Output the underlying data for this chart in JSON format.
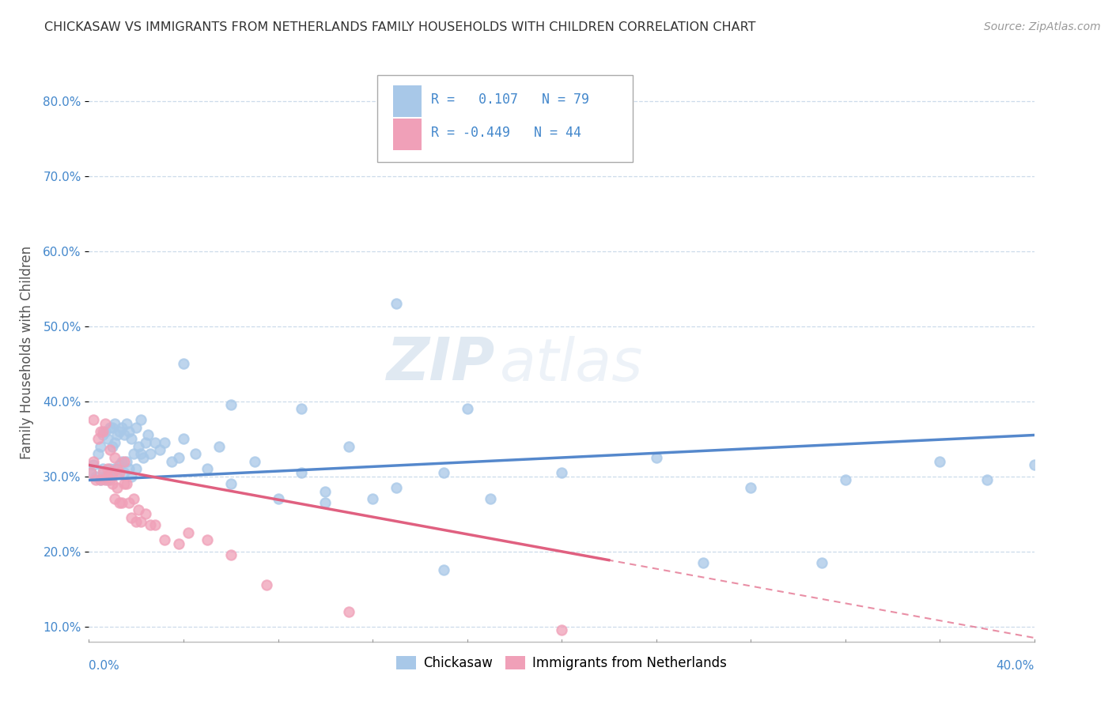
{
  "title": "CHICKASAW VS IMMIGRANTS FROM NETHERLANDS FAMILY HOUSEHOLDS WITH CHILDREN CORRELATION CHART",
  "source": "Source: ZipAtlas.com",
  "ylabel": "Family Households with Children",
  "legend_label_1": "Chickasaw",
  "legend_label_2": "Immigrants from Netherlands",
  "color_blue": "#a8c8e8",
  "color_pink": "#f0a0b8",
  "color_blue_text": "#4488cc",
  "trend_blue": "#5588cc",
  "trend_pink": "#e06080",
  "watermark_zip": "ZIP",
  "watermark_atlas": "atlas",
  "xlim": [
    0.0,
    0.4
  ],
  "ylim": [
    0.08,
    0.85
  ],
  "blue_x": [
    0.001,
    0.002,
    0.003,
    0.004,
    0.005,
    0.005,
    0.006,
    0.006,
    0.007,
    0.007,
    0.008,
    0.008,
    0.009,
    0.009,
    0.01,
    0.01,
    0.01,
    0.011,
    0.011,
    0.011,
    0.012,
    0.012,
    0.013,
    0.013,
    0.014,
    0.014,
    0.015,
    0.015,
    0.016,
    0.016,
    0.017,
    0.017,
    0.018,
    0.018,
    0.019,
    0.02,
    0.02,
    0.021,
    0.022,
    0.022,
    0.023,
    0.024,
    0.025,
    0.026,
    0.028,
    0.03,
    0.032,
    0.035,
    0.038,
    0.04,
    0.045,
    0.05,
    0.055,
    0.06,
    0.07,
    0.08,
    0.09,
    0.1,
    0.11,
    0.13,
    0.15,
    0.17,
    0.2,
    0.24,
    0.28,
    0.32,
    0.36,
    0.38,
    0.4,
    0.13,
    0.16,
    0.06,
    0.04,
    0.09,
    0.1,
    0.12,
    0.15,
    0.26,
    0.31
  ],
  "blue_y": [
    0.305,
    0.315,
    0.3,
    0.33,
    0.295,
    0.34,
    0.31,
    0.355,
    0.3,
    0.36,
    0.295,
    0.35,
    0.31,
    0.365,
    0.3,
    0.34,
    0.365,
    0.31,
    0.345,
    0.37,
    0.305,
    0.355,
    0.315,
    0.36,
    0.32,
    0.365,
    0.305,
    0.355,
    0.32,
    0.37,
    0.31,
    0.36,
    0.3,
    0.35,
    0.33,
    0.31,
    0.365,
    0.34,
    0.33,
    0.375,
    0.325,
    0.345,
    0.355,
    0.33,
    0.345,
    0.335,
    0.345,
    0.32,
    0.325,
    0.35,
    0.33,
    0.31,
    0.34,
    0.29,
    0.32,
    0.27,
    0.305,
    0.265,
    0.34,
    0.285,
    0.305,
    0.27,
    0.305,
    0.325,
    0.285,
    0.295,
    0.32,
    0.295,
    0.315,
    0.53,
    0.39,
    0.395,
    0.45,
    0.39,
    0.28,
    0.27,
    0.175,
    0.185,
    0.185
  ],
  "pink_x": [
    0.001,
    0.002,
    0.002,
    0.003,
    0.004,
    0.005,
    0.005,
    0.006,
    0.006,
    0.007,
    0.007,
    0.008,
    0.008,
    0.009,
    0.009,
    0.01,
    0.01,
    0.011,
    0.011,
    0.012,
    0.012,
    0.013,
    0.013,
    0.014,
    0.015,
    0.015,
    0.016,
    0.017,
    0.018,
    0.019,
    0.02,
    0.021,
    0.022,
    0.024,
    0.026,
    0.028,
    0.032,
    0.038,
    0.042,
    0.05,
    0.06,
    0.075,
    0.11,
    0.2
  ],
  "pink_y": [
    0.305,
    0.32,
    0.375,
    0.295,
    0.35,
    0.295,
    0.36,
    0.305,
    0.36,
    0.295,
    0.37,
    0.3,
    0.31,
    0.295,
    0.335,
    0.29,
    0.305,
    0.27,
    0.325,
    0.285,
    0.31,
    0.265,
    0.305,
    0.265,
    0.29,
    0.32,
    0.29,
    0.265,
    0.245,
    0.27,
    0.24,
    0.255,
    0.24,
    0.25,
    0.235,
    0.235,
    0.215,
    0.21,
    0.225,
    0.215,
    0.195,
    0.155,
    0.12,
    0.095
  ],
  "pink_trend_x0": 0.0,
  "pink_trend_y0": 0.315,
  "pink_trend_x1": 0.4,
  "pink_trend_y1": 0.085,
  "blue_trend_x0": 0.0,
  "blue_trend_y0": 0.295,
  "blue_trend_x1": 0.4,
  "blue_trend_y1": 0.355
}
